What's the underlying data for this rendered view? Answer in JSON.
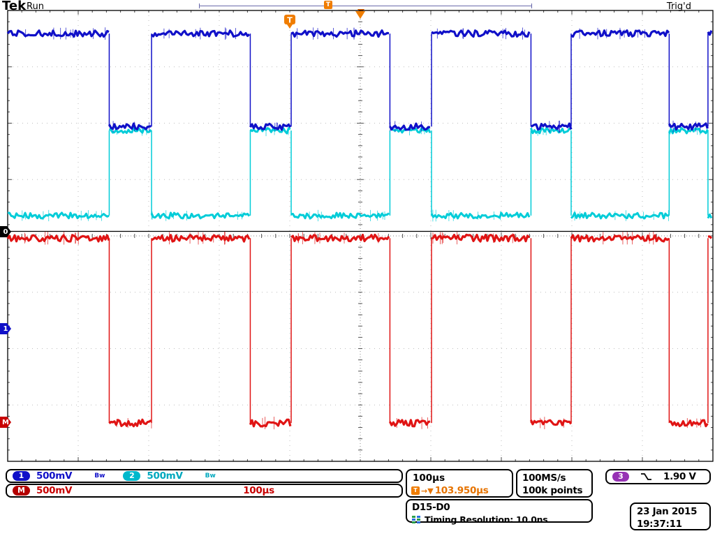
{
  "header": {
    "logo": "Tek",
    "status": "Run",
    "trig_status": "Trig'd"
  },
  "timeline": {
    "t_label": "T"
  },
  "trigger_flag": {
    "t_label": "T"
  },
  "markers": {
    "d0": "0",
    "ch1": "1",
    "math": "M"
  },
  "readouts": {
    "ch1": {
      "badge": "1",
      "scale": "500mV",
      "bw": "Bw"
    },
    "ch2": {
      "badge": "2",
      "scale": "500mV",
      "bw": "Bw"
    },
    "math": {
      "badge": "M",
      "scale": "500mV",
      "timebase": "100µs"
    },
    "horizontal": {
      "timebase": "100µs",
      "t_label": "T",
      "delay_arrows": "→▼",
      "delay": "103.950µs"
    },
    "acquisition": {
      "sample_rate": "100MS/s",
      "record_length": "100k points"
    },
    "trigger": {
      "badge": "3",
      "level": "1.90 V"
    },
    "digital": {
      "channels": "D15-D0",
      "resolution": "Timing Resolution: 10.0ns"
    },
    "datetime": {
      "date": "23 Jan 2015",
      "time": "19:37:11"
    }
  },
  "colors": {
    "ch1": "#1010c8",
    "ch2": "#00ccd8",
    "math": "#e01414",
    "d0": "#000000",
    "trigger_orange": "#f07d00",
    "trigger_purple": "#9632b4"
  },
  "chart_data": {
    "type": "line",
    "instrument": "oscilloscope",
    "timebase_per_div_us": 100,
    "h_divisions": 10,
    "v_divisions": 8,
    "t_range_us": [
      0,
      1000
    ],
    "sample_rate": "100MS/s",
    "record_length": "100k points",
    "period_us": 200,
    "duty_high_pct": 70,
    "trigger": {
      "delay_us": 103.95,
      "level_v": 1.9,
      "screen_pos_us": 500,
      "expansion_pos_us": 400
    },
    "series": [
      {
        "name": "CH2",
        "color": "#00ccd8",
        "volts_per_div": "500mV",
        "initial": "low",
        "edges_us": [
          144,
          204,
          344,
          402,
          542,
          601,
          742,
          799,
          938,
          993
        ],
        "high_div": 2.13,
        "low_div": 3.64,
        "noise_div": 0.05,
        "stroke_px": 3
      },
      {
        "name": "CH1",
        "color": "#1010c8",
        "volts_per_div": "500mV",
        "initial": "high",
        "edges_us": [
          144,
          204,
          344,
          402,
          542,
          601,
          742,
          799,
          938,
          993
        ],
        "high_div": 0.41,
        "low_div": 2.06,
        "noise_div": 0.055,
        "stroke_px": 3.2
      },
      {
        "name": "D0",
        "color": "#000000",
        "volts_per_div": null,
        "initial": "high",
        "edges_us": [],
        "high_div": 3.92,
        "low_div": 3.92,
        "noise_div": 0,
        "stroke_px": 1.2
      },
      {
        "name": "MATH",
        "color": "#e01414",
        "volts_per_div": "500mV",
        "initial": "high",
        "edges_us": [
          144,
          204,
          344,
          402,
          542,
          601,
          742,
          799,
          938,
          993
        ],
        "high_div": 4.04,
        "low_div": 7.32,
        "noise_div": 0.06,
        "stroke_px": 3.2
      }
    ]
  }
}
